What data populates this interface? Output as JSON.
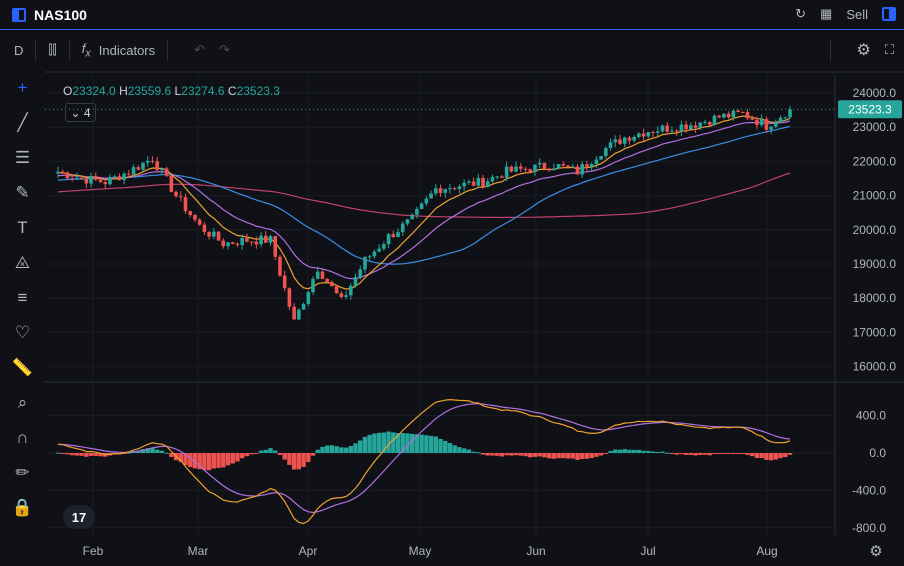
{
  "header": {
    "symbol": "NAS100",
    "sell_label": "Sell"
  },
  "toolbar": {
    "interval": "D",
    "indicators_label": "Indicators"
  },
  "legend": {
    "o_label": "O",
    "o": "23324.0",
    "h_label": "H",
    "h": "23559.6",
    "l_label": "L",
    "l": "23274.6",
    "c_label": "C",
    "c": "23523.3",
    "indicator_count": "4"
  },
  "colors": {
    "up": "#26a69a",
    "down": "#ef5350",
    "accent": "#2962ff",
    "ema_fast": "#f0a030",
    "ema_slow": "#b071e0",
    "sma_mid": "#3a8ee6",
    "sma_long": "#c2406d"
  },
  "chart_data": {
    "type": "candlestick",
    "price_ticks": [
      "24000.0",
      "23000.0",
      "22000.0",
      "21000.0",
      "20000.0",
      "19000.0",
      "18000.0",
      "17000.0",
      "16000.0"
    ],
    "last_price": "23523.3",
    "macd_ticks": [
      "400.0",
      "0.0",
      "-400.0",
      "-800.0"
    ],
    "x_labels": [
      "Feb",
      "Mar",
      "Apr",
      "May",
      "Jun",
      "Jul",
      "Aug"
    ],
    "weekly_closes": [
      21700,
      21500,
      21400,
      21700,
      22100,
      21000,
      20100,
      19600,
      19700,
      19700,
      17300,
      18900,
      17900,
      19100,
      19800,
      20300,
      21200,
      21300,
      21400,
      21700,
      21800,
      21900,
      21700,
      22300,
      22700,
      22900,
      23000,
      23100,
      23300,
      23400,
      23050,
      23523
    ],
    "ylim": [
      15800,
      24400
    ]
  }
}
